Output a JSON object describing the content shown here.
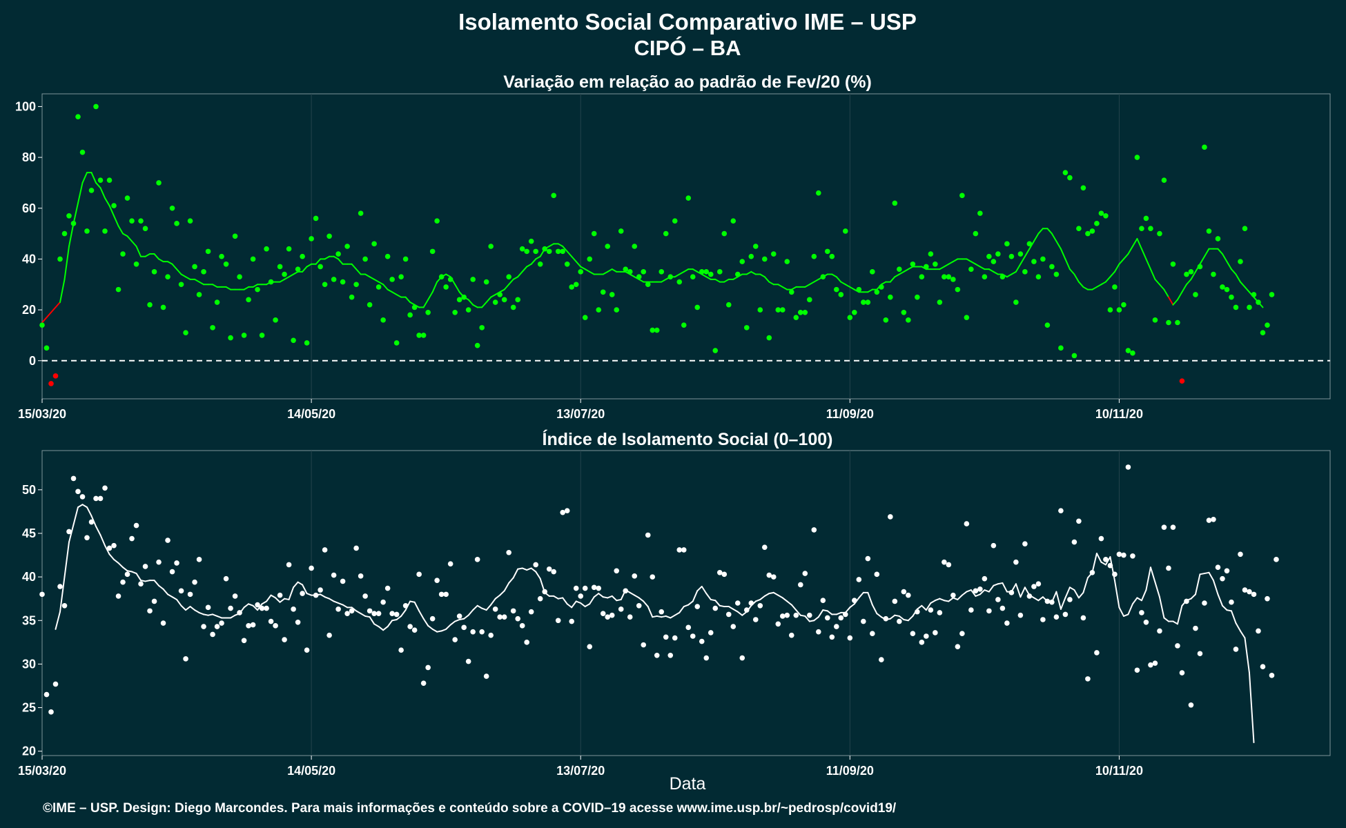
{
  "title": "Isolamento Social Comparativo IME – USP",
  "subtitle": "CIPÓ – BA",
  "xlabel": "Data",
  "footer": "©IME – USP. Design: Diego Marcondes. Para mais informações e conteúdo sobre a COVID–19 acesse www.ime.usp.br/~pedrosp/covid19/",
  "colors": {
    "background": "#022a33",
    "positive": "#00ff00",
    "negative": "#ff0000",
    "index": "#ffffff",
    "grid": "#24434c"
  },
  "chart_data": [
    {
      "type": "scatter",
      "title": "Variação em relação ao padrão de Fev/20 (%)",
      "x_tick_labels": [
        "15/03/20",
        "14/05/20",
        "13/07/20",
        "11/09/20",
        "10/11/20"
      ],
      "x_tick_dates": [
        "2020-03-15",
        "2020-05-14",
        "2020-07-13",
        "2020-09-11",
        "2020-11-10"
      ],
      "x_range": [
        "2020-03-15",
        "2020-12-27"
      ],
      "ylim": [
        -15,
        105
      ],
      "y_ticks": [
        0,
        20,
        40,
        60,
        80,
        100
      ],
      "reference_line": 0,
      "grid": true,
      "start_date": "2020-03-15",
      "points": [
        14,
        5,
        -9,
        -6,
        40,
        50,
        57,
        54,
        96,
        82,
        51,
        67,
        100,
        71,
        51,
        71,
        61,
        28,
        42,
        64,
        55,
        38,
        55,
        52,
        22,
        35,
        70,
        21,
        33,
        60,
        54,
        30,
        11,
        55,
        37,
        26,
        35,
        43,
        13,
        23,
        41,
        38,
        9,
        49,
        33,
        10,
        24,
        40,
        28,
        10,
        44,
        31,
        16,
        37,
        34,
        44,
        8,
        36,
        41,
        7,
        48,
        56,
        37,
        30,
        49,
        32,
        42,
        31,
        45,
        25,
        30,
        58,
        40,
        22,
        46,
        29,
        16,
        41,
        32,
        7,
        33,
        40,
        18,
        21,
        10,
        10,
        19,
        43,
        55,
        33,
        29,
        32,
        19,
        24,
        25,
        20,
        32,
        6,
        13,
        31,
        45,
        23,
        26,
        24,
        33,
        21,
        24,
        44,
        43,
        47,
        43,
        38,
        44,
        43,
        65,
        43,
        43,
        38,
        29,
        30,
        35,
        17,
        40,
        50,
        20,
        27,
        45,
        26,
        20,
        51,
        36,
        35,
        45,
        33,
        35,
        30,
        12,
        12,
        35,
        50,
        33,
        55,
        31,
        14,
        64,
        33,
        21,
        35,
        35,
        34,
        4,
        35,
        50,
        22,
        55,
        34,
        39,
        13,
        41,
        45,
        20,
        40,
        9,
        42,
        20,
        20,
        39,
        27,
        17,
        19,
        19,
        24,
        41,
        66,
        33,
        43,
        41,
        28,
        26,
        51,
        17,
        19,
        28,
        23,
        23,
        35,
        27,
        29,
        16,
        25,
        62,
        36,
        19,
        16,
        38,
        25,
        33,
        37,
        42,
        38,
        23,
        33,
        33,
        32,
        28,
        65,
        17,
        36,
        50,
        58,
        33,
        41,
        39,
        42,
        33,
        46,
        41,
        23,
        42,
        35,
        46,
        39,
        33,
        40,
        14,
        37,
        34,
        5,
        74,
        72,
        2,
        52,
        68,
        50,
        51,
        54,
        58,
        57,
        20,
        29,
        20,
        22,
        4,
        3,
        80,
        52,
        56,
        52,
        16,
        50,
        71,
        15,
        38,
        15,
        -8,
        34,
        35,
        26,
        37,
        84,
        51,
        34,
        48,
        29,
        28,
        25,
        21,
        39,
        52,
        21,
        26,
        23,
        11,
        14,
        26
      ],
      "ma_first_day": 0,
      "moving_average": [
        15,
        17,
        19,
        21,
        23,
        32,
        45,
        54,
        62,
        70,
        74,
        74,
        70,
        68,
        64,
        61,
        57,
        53,
        50,
        49,
        47,
        45,
        41,
        41,
        42,
        42,
        40,
        39,
        39,
        38,
        36,
        34,
        33,
        32,
        32,
        31,
        30,
        30,
        30,
        29,
        29,
        29,
        28,
        28,
        28,
        28,
        29,
        29,
        30,
        30,
        30,
        31,
        31,
        31,
        32,
        33,
        34,
        35,
        35,
        37,
        38,
        38,
        40,
        40,
        41,
        41,
        40,
        38,
        38,
        38,
        36,
        34,
        34,
        33,
        32,
        31,
        30,
        28,
        27,
        26,
        25,
        25,
        23,
        22,
        21,
        21,
        24,
        27,
        31,
        33,
        34,
        33,
        30,
        27,
        25,
        24,
        22,
        21,
        21,
        23,
        25,
        26,
        27,
        28,
        30,
        32,
        33,
        35,
        37,
        38,
        40,
        41,
        44,
        45,
        46,
        46,
        45,
        43,
        41,
        39,
        37,
        36,
        35,
        34,
        34,
        34,
        35,
        36,
        35,
        35,
        35,
        34,
        33,
        32,
        31,
        31,
        31,
        31,
        31,
        32,
        33,
        33,
        34,
        35,
        36,
        36,
        35,
        34,
        33,
        32,
        32,
        31,
        31,
        32,
        32,
        33,
        34,
        34,
        35,
        34,
        34,
        33,
        31,
        30,
        30,
        29,
        28,
        28,
        29,
        29,
        29,
        30,
        31,
        32,
        33,
        34,
        34,
        33,
        31,
        30,
        29,
        28,
        27,
        27,
        27,
        28,
        28,
        30,
        31,
        31,
        33,
        34,
        35,
        36,
        37,
        37,
        37,
        36,
        36,
        36,
        36,
        37,
        38,
        39,
        40,
        40,
        40,
        39,
        38,
        37,
        36,
        36,
        35,
        34,
        34,
        33,
        34,
        35,
        38,
        41,
        44,
        47,
        50,
        52,
        52,
        50,
        47,
        44,
        40,
        36,
        34,
        31,
        29,
        28,
        28,
        29,
        30,
        31,
        33,
        35,
        38,
        40,
        42,
        45,
        48,
        44,
        40,
        36,
        32,
        30,
        28,
        25,
        22,
        24,
        27,
        30,
        32,
        35,
        38,
        41,
        44,
        44,
        44,
        42,
        39,
        36,
        34,
        31,
        29,
        27,
        25,
        23,
        21
      ]
    },
    {
      "type": "scatter",
      "title": "Índice de Isolamento Social (0–100)",
      "x_tick_labels": [
        "15/03/20",
        "14/05/20",
        "13/07/20",
        "11/09/20",
        "10/11/20"
      ],
      "x_tick_dates": [
        "2020-03-15",
        "2020-05-14",
        "2020-07-13",
        "2020-09-11",
        "2020-11-10"
      ],
      "x_range": [
        "2020-03-15",
        "2020-12-27"
      ],
      "xlabel": "Data",
      "ylim": [
        19.5,
        54.5
      ],
      "y_ticks": [
        20,
        25,
        30,
        35,
        40,
        45,
        50
      ],
      "grid": true,
      "start_date": "2020-03-15",
      "points": [
        38,
        26.5,
        24.5,
        27.7,
        38.9,
        36.7,
        45.2,
        51.3,
        49.8,
        49.2,
        44.5,
        46.3,
        49,
        49,
        50.2,
        43.3,
        43.6,
        37.8,
        39.4,
        40.3,
        44.4,
        45.9,
        39.2,
        41.2,
        36.1,
        37.2,
        41.7,
        34.7,
        44.2,
        40.6,
        41.6,
        38.4,
        30.6,
        38,
        39.4,
        42,
        34.3,
        36.5,
        33.4,
        34.3,
        34.7,
        39.8,
        36.4,
        37.8,
        35.9,
        32.7,
        34.4,
        34.5,
        36.8,
        36.4,
        36.4,
        34.9,
        34.4,
        37.9,
        32.8,
        41.4,
        36.3,
        34.8,
        38.1,
        31.6,
        41,
        37.9,
        38.5,
        43.1,
        33.3,
        40.2,
        36.3,
        39.5,
        35.8,
        36.1,
        43.3,
        40.1,
        37.8,
        36.1,
        35.8,
        35.8,
        37.1,
        38.7,
        35.8,
        35.7,
        31.6,
        36.7,
        34.3,
        33.9,
        40.3,
        27.8,
        29.6,
        35.2,
        39.6,
        38,
        38,
        41.5,
        32.8,
        35.5,
        34.2,
        30.3,
        33.7,
        42,
        33.7,
        28.6,
        33.3,
        36.3,
        35.4,
        35.4,
        42.8,
        36.1,
        35.2,
        34.4,
        32.5,
        36,
        41.4,
        37.5,
        38.3,
        40.9,
        40.6,
        35,
        47.4,
        47.6,
        34.9,
        38.7,
        37.8,
        38.7,
        32,
        38.8,
        38.7,
        35.8,
        35.4,
        35.6,
        40.7,
        36.3,
        38.4,
        35.4,
        40.1,
        36.7,
        32.2,
        44.8,
        40,
        31,
        36,
        33.1,
        31,
        33,
        43.1,
        43.1,
        34.2,
        33.2,
        36.6,
        32.6,
        30.7,
        33.6,
        36.4,
        40.5,
        40.3,
        35.7,
        34.3,
        37,
        30.7,
        36.2,
        37,
        35.1,
        36.7,
        43.4,
        40.2,
        40,
        34.6,
        35.5,
        35.6,
        33.3,
        35.6,
        39.1,
        40.4,
        35.6,
        45.4,
        33.7,
        37.3,
        35.3,
        33.1,
        34.3,
        35.3,
        35.7,
        33,
        37.3,
        39.7,
        34.9,
        42.1,
        33.5,
        40.3,
        30.5,
        35.2,
        46.9,
        37.2,
        34.9,
        38.3,
        37.9,
        33.5,
        36,
        32.5,
        33.2,
        36.2,
        33.6,
        35.9,
        41.7,
        41.4,
        37.9,
        32,
        33.5,
        46.1,
        36.2,
        38.4,
        38.6,
        39.8,
        36.1,
        43.6,
        37.4,
        36.4,
        34.7,
        38.2,
        41.7,
        35.6,
        43.8,
        37.8,
        38.9,
        39.2,
        35.1,
        37.2,
        37.1,
        35.4,
        47.6,
        35.7,
        37.4,
        44,
        46.4,
        35.3,
        28.3,
        40.5,
        31.3,
        44.4,
        42,
        41.3,
        40.3,
        42.6,
        42.5,
        52.6,
        42.4,
        29.3,
        35.9,
        34.8,
        29.9,
        30.1,
        33.8,
        45.7,
        41,
        45.7,
        32.1,
        29,
        37.2,
        25.3,
        34.1,
        31.2,
        37,
        46.5,
        46.6,
        41.1,
        39.8,
        40.7,
        37.1,
        31.7,
        42.6,
        38.5,
        38.3,
        38,
        33.8,
        29.7,
        37.5,
        28.7,
        42
      ],
      "ma_first_day": 3,
      "moving_average": [
        34,
        36,
        40,
        44,
        46,
        48,
        48.3,
        48,
        47,
        45.8,
        44.8,
        43.6,
        42.6,
        42,
        41.6,
        41.1,
        40.7,
        40.6,
        40.4,
        39.6,
        39.5,
        39.6,
        39.6,
        39,
        38.6,
        38,
        37.7,
        37.4,
        36.7,
        36.2,
        36.6,
        36.2,
        35.9,
        35.7,
        35.6,
        35.7,
        35.5,
        35.3,
        35.3,
        35.3,
        35.6,
        35.8,
        36.5,
        36.9,
        36.7,
        36.2,
        36.9,
        37.2,
        37.9,
        37.6,
        37.1,
        37.5,
        37.4,
        38.8,
        39.4,
        39.1,
        38.1,
        37.9,
        37.9,
        38,
        37.7,
        37.5,
        37.2,
        37,
        36.8,
        36.5,
        36.5,
        36.1,
        35.8,
        35.5,
        35.4,
        34.6,
        34.3,
        33.9,
        34.3,
        35,
        35.1,
        35.5,
        36.2,
        37.2,
        37.1,
        36.1,
        35.2,
        34.4,
        34,
        33.7,
        33.8,
        34,
        34.5,
        34.9,
        35.1,
        35.2,
        35.6,
        36.2,
        36.7,
        36.4,
        36.2,
        36.8,
        37.5,
        37.9,
        38.4,
        39.3,
        39.9,
        40.9,
        41,
        40.8,
        41,
        40.6,
        39.8,
        38.2,
        37.8,
        37.8,
        37.5,
        37.6,
        36.9,
        36.5,
        37.2,
        37,
        36.6,
        36.9,
        37.7,
        38.1,
        37.7,
        37.6,
        37.8,
        37.3,
        37.4,
        38.5,
        38.2,
        37.9,
        37.6,
        37.2,
        36.6,
        35.4,
        35.5,
        35.4,
        35.5,
        35.3,
        35.6,
        35.9,
        36.6,
        36.8,
        37.2,
        38.4,
        38.9,
        38.1,
        37.4,
        37.3,
        36.7,
        36.6,
        36.6,
        36.3,
        36,
        35.6,
        36,
        36.7,
        37.2,
        37.4,
        37.8,
        38.1,
        38.2,
        37.9,
        37.6,
        37.2,
        36.8,
        36.2,
        35.6,
        35.5,
        34.9,
        35,
        35.4,
        36.2,
        36.1,
        35.7,
        35.7,
        35.9,
        35.9,
        36.5,
        36.9,
        37.6,
        38.2,
        38.2,
        36.8,
        35.8,
        35.4,
        35.1,
        35.2,
        35.6,
        35.5,
        35.1,
        35,
        35.5,
        36.3,
        36.7,
        36.2,
        37,
        37.3,
        37.5,
        37.3,
        37.2,
        37.6,
        37.4,
        37.9,
        38.3,
        38.5,
        37.8,
        38,
        38.5,
        38.3,
        39,
        39.2,
        39.3,
        38.3,
        38.3,
        39.2,
        37.7,
        38.8,
        37.9,
        37.6,
        37.3,
        37.7,
        37.2,
        37.1,
        38.3,
        36.3,
        37.6,
        38.8,
        38.5,
        37.6,
        38.2,
        39.9,
        40.5,
        42.7,
        41.7,
        41.4,
        42.3,
        39.6,
        36.5,
        35.5,
        35.7,
        36.9,
        37.6,
        37.3,
        38.5,
        41.1,
        39.4,
        37.7,
        35.3,
        34.9,
        34.9,
        34.6,
        36.7,
        37.3,
        37.5,
        38,
        40.3,
        40.4,
        40.5,
        39.6,
        38,
        36.7,
        36.2,
        36.1,
        34.7,
        33.8,
        33,
        29,
        21
      ]
    }
  ]
}
